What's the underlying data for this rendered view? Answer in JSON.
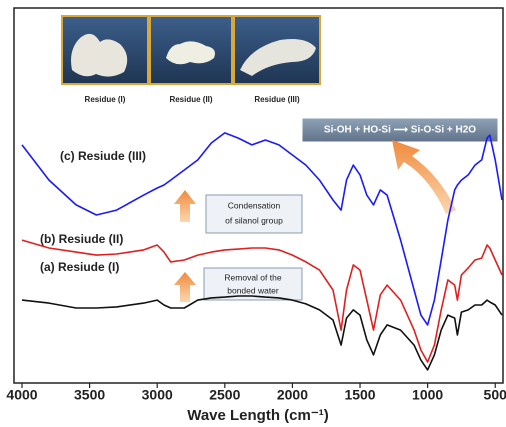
{
  "chart_data": {
    "type": "line",
    "x_label": "Wave Length (cm⁻¹)",
    "photos": [
      "Residue (I)",
      "Residue (II)",
      "Residue (III)"
    ],
    "annotations": [
      [
        "Condensation",
        "of silanol group"
      ],
      [
        "Removal of the",
        "bonded water"
      ],
      [
        "Si-OH + HO-Si ⟶ Si-O-Si + H2O"
      ]
    ],
    "x": [
      4000,
      3800,
      3600,
      3450,
      3300,
      3100,
      3000,
      2950,
      2900,
      2800,
      2700,
      2600,
      2500,
      2400,
      2300,
      2200,
      2100,
      2000,
      1900,
      1800,
      1700,
      1640,
      1600,
      1550,
      1500,
      1450,
      1400,
      1350,
      1300,
      1200,
      1100,
      1050,
      1000,
      950,
      900,
      850,
      800,
      780,
      750,
      700,
      650,
      600,
      560,
      540,
      500,
      450
    ],
    "xlim": [
      4000,
      450
    ],
    "xticks": [
      4000,
      3500,
      3000,
      2500,
      2000,
      1500,
      1000,
      500
    ],
    "ylim": [
      0,
      100
    ],
    "series": [
      {
        "name": "(a) Resiude (I)",
        "color": "#111111",
        "values": [
          22.1,
          21.3,
          20,
          20,
          20.3,
          21.3,
          22.1,
          20.8,
          20,
          20,
          22.1,
          22.7,
          22.9,
          23.2,
          23.2,
          22.9,
          22.7,
          22.1,
          21.1,
          19.5,
          16.8,
          10.1,
          17.3,
          19.5,
          18.1,
          11.5,
          7.5,
          12.8,
          15.5,
          14.1,
          10.1,
          6.1,
          3.5,
          7.5,
          14.1,
          18.1,
          17.3,
          12.8,
          18.9,
          19.5,
          20.8,
          20.8,
          22.1,
          21.6,
          20.8,
          18.1
        ]
      },
      {
        "name": "(b) Resiude (II)",
        "color": "#e02020",
        "values": [
          38.1,
          36,
          34.9,
          34.1,
          34.4,
          35.5,
          36.8,
          34.9,
          32.3,
          32.8,
          34.1,
          34.9,
          35.5,
          35.7,
          36,
          36,
          35.5,
          34.1,
          32.3,
          30.1,
          24.8,
          14.1,
          24.8,
          31.5,
          30.1,
          22.1,
          14.1,
          23.5,
          26.1,
          22.1,
          14.1,
          8.8,
          5.6,
          10.1,
          19.5,
          27.5,
          26.1,
          22.1,
          28.8,
          30.7,
          32.8,
          33.3,
          36.8,
          36,
          32.8,
          28.8
        ]
      },
      {
        "name": "(c) Resiude (III)",
        "color": "#1a1aff",
        "values": [
          63.5,
          54.1,
          47.5,
          44.8,
          46.1,
          50.1,
          52,
          52.8,
          54.1,
          56.8,
          59.5,
          64,
          66.7,
          65.3,
          63.5,
          64.8,
          63.5,
          60.8,
          58.1,
          54.1,
          48.8,
          46.1,
          54.1,
          58.1,
          55.5,
          50.1,
          47.5,
          51.5,
          50.1,
          38.1,
          24.8,
          18.1,
          15.5,
          22.1,
          32.8,
          43.5,
          51.5,
          52.8,
          54.1,
          55.5,
          58.1,
          59.5,
          65.3,
          66.1,
          59.5,
          48.8
        ]
      }
    ]
  }
}
